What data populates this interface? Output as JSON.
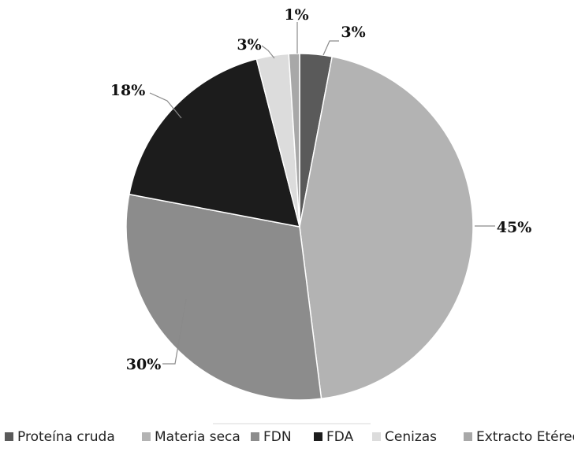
{
  "chart_data": {
    "type": "pie",
    "categories": [
      "Proteína cruda",
      "Materia seca",
      "FDN",
      "FDA",
      "Cenizas",
      "Extracto Etéreo"
    ],
    "values": [
      3,
      45,
      30,
      18,
      3,
      1
    ],
    "data_labels": [
      "3%",
      "45%",
      "30%",
      "18%",
      "3%",
      "1%"
    ],
    "colors": [
      "#5a5a5a",
      "#b3b3b3",
      "#8c8c8c",
      "#1c1c1c",
      "#dcdcdc",
      "#a8a8a8"
    ],
    "legend_position": "bottom",
    "start_angle_deg": 0,
    "direction": "clockwise"
  }
}
